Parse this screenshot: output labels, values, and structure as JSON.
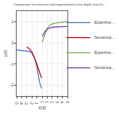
{
  "chart_data": {
    "type": "line",
    "title": "Comparison of numerical and experimental scour depth chart fo...",
    "xlabel": "X/D",
    "ylabel": "z/D",
    "xlim": [
      -5,
      5
    ],
    "ylim": [
      -2.5,
      1.5
    ],
    "xticks": [
      -5,
      -4,
      -3,
      -2,
      -1,
      0,
      1,
      2,
      3,
      4,
      5
    ],
    "yticks": [
      -2,
      -1,
      0,
      1
    ],
    "grid": true,
    "legend": "right",
    "series": [
      {
        "name": "Experime...",
        "color": "#4472c4",
        "x": [
          -5,
          -4.5,
          -4,
          -3.5,
          -3,
          -2.5,
          -2,
          -1.5,
          -1,
          -0.5,
          -0.05
        ],
        "values": [
          -0.33,
          -0.34,
          -0.35,
          -0.36,
          -0.37,
          -0.4,
          -0.48,
          -0.68,
          -1.15,
          -1.85,
          -2.15
        ]
      },
      {
        "name": "Numerica...",
        "color": "#c00000",
        "x": [
          -3.0,
          -2.5,
          -2.0,
          -1.5,
          -1.0,
          -0.5,
          -0.1
        ],
        "values": [
          -0.18,
          -0.28,
          -0.42,
          -0.68,
          -1.0,
          -1.38,
          -1.65
        ]
      },
      {
        "name": "Experime...",
        "color": "#70ad47",
        "x": [
          0.05,
          0.5,
          1.0,
          1.5,
          2.0,
          2.5,
          3.0,
          3.5,
          4.0,
          4.5,
          5.0
        ],
        "values": [
          0.05,
          0.38,
          0.68,
          0.83,
          0.9,
          0.93,
          0.95,
          0.97,
          0.98,
          0.99,
          1.0
        ]
      },
      {
        "name": "Numerica...",
        "color": "#7030a0",
        "x": [
          0.05,
          0.5,
          1.0,
          1.5,
          2.0,
          2.5,
          3.0,
          3.5,
          4.0,
          4.5,
          5.0
        ],
        "values": [
          0.3,
          0.52,
          0.65,
          0.71,
          0.74,
          0.75,
          0.76,
          0.77,
          0.77,
          0.78,
          0.78
        ]
      }
    ]
  }
}
